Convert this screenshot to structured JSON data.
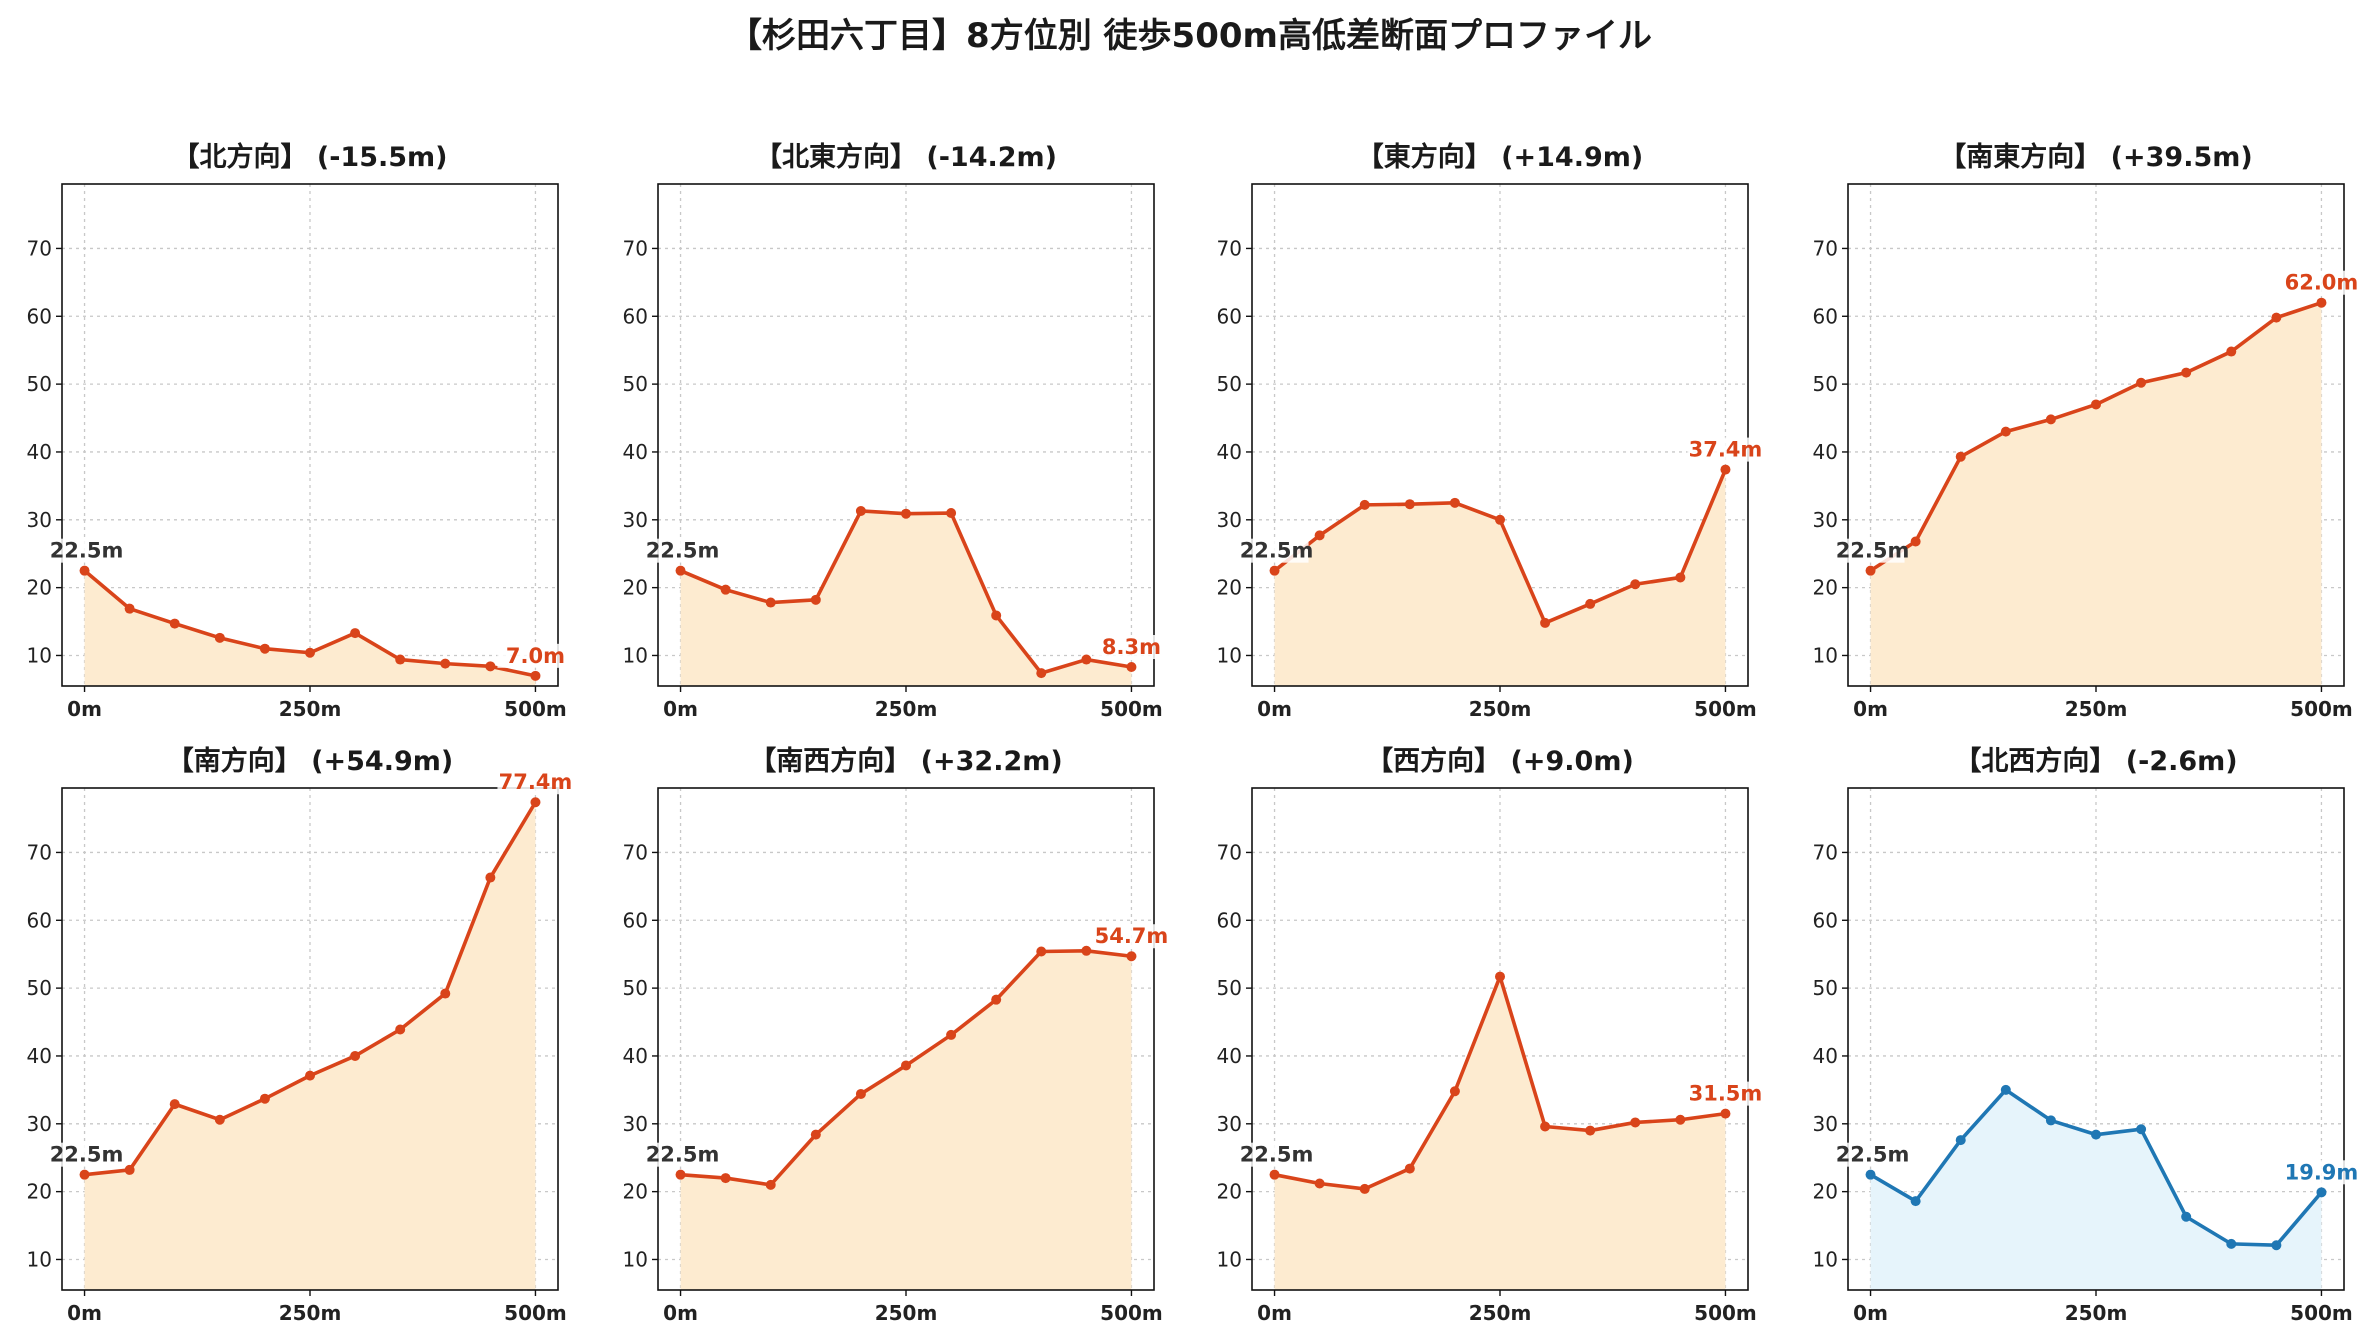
{
  "title": "【杉田六丁目】8方位別 徒歩500m高低差断面プロファイル",
  "colors": {
    "line_down_up": "#d9441a",
    "fill_warm": "#fdebd0",
    "line_blue": "#1f77b4",
    "fill_blue": "#e6f4fb",
    "start_label": "#333333"
  },
  "chart_data": [
    {
      "type": "line",
      "title": "【北方向】 (-15.5m)",
      "color": "red",
      "x": [
        0,
        50,
        100,
        150,
        200,
        250,
        300,
        350,
        400,
        450,
        500
      ],
      "values": [
        22.5,
        16.9,
        14.7,
        12.6,
        11.0,
        10.4,
        13.3,
        9.4,
        8.8,
        8.4,
        7.0
      ],
      "start_label": "22.5m",
      "end_label": "7.0m"
    },
    {
      "type": "line",
      "title": "【北東方向】 (-14.2m)",
      "color": "red",
      "x": [
        0,
        50,
        100,
        150,
        200,
        250,
        300,
        350,
        400,
        450,
        500
      ],
      "values": [
        22.5,
        19.7,
        17.8,
        18.2,
        31.3,
        30.9,
        31.0,
        15.9,
        7.4,
        9.4,
        8.3
      ],
      "start_label": "22.5m",
      "end_label": "8.3m"
    },
    {
      "type": "line",
      "title": "【東方向】 (+14.9m)",
      "color": "red",
      "x": [
        0,
        50,
        100,
        150,
        200,
        250,
        300,
        350,
        400,
        450,
        500
      ],
      "values": [
        22.5,
        27.7,
        32.2,
        32.3,
        32.5,
        30.0,
        14.8,
        17.6,
        20.5,
        21.5,
        37.4
      ],
      "start_label": "22.5m",
      "end_label": "37.4m"
    },
    {
      "type": "line",
      "title": "【南東方向】 (+39.5m)",
      "color": "red",
      "x": [
        0,
        50,
        100,
        150,
        200,
        250,
        300,
        350,
        400,
        450,
        500
      ],
      "values": [
        22.5,
        26.8,
        39.3,
        43.0,
        44.8,
        47.0,
        50.2,
        51.7,
        54.8,
        59.8,
        62.0
      ],
      "start_label": "22.5m",
      "end_label": "62.0m"
    },
    {
      "type": "line",
      "title": "【南方向】 (+54.9m)",
      "color": "red",
      "x": [
        0,
        50,
        100,
        150,
        200,
        250,
        300,
        350,
        400,
        450,
        500
      ],
      "values": [
        22.5,
        23.2,
        32.9,
        30.6,
        33.7,
        37.1,
        40.0,
        43.9,
        49.2,
        66.3,
        77.4
      ],
      "start_label": "22.5m",
      "end_label": "77.4m"
    },
    {
      "type": "line",
      "title": "【南西方向】 (+32.2m)",
      "color": "red",
      "x": [
        0,
        50,
        100,
        150,
        200,
        250,
        300,
        350,
        400,
        450,
        500
      ],
      "values": [
        22.5,
        22.0,
        21.0,
        28.4,
        34.4,
        38.6,
        43.1,
        48.3,
        55.4,
        55.5,
        54.7
      ],
      "start_label": "22.5m",
      "end_label": "54.7m"
    },
    {
      "type": "line",
      "title": "【西方向】 (+9.0m)",
      "color": "red",
      "x": [
        0,
        50,
        100,
        150,
        200,
        250,
        300,
        350,
        400,
        450,
        500
      ],
      "values": [
        22.5,
        21.2,
        20.4,
        23.4,
        34.8,
        51.7,
        29.6,
        29.0,
        30.2,
        30.6,
        31.5
      ],
      "start_label": "22.5m",
      "end_label": "31.5m"
    },
    {
      "type": "line",
      "title": "【北西方向】 (-2.6m)",
      "color": "blue",
      "x": [
        0,
        50,
        100,
        150,
        200,
        250,
        300,
        350,
        400,
        450,
        500
      ],
      "values": [
        22.5,
        18.6,
        27.6,
        35.0,
        30.5,
        28.4,
        29.2,
        16.3,
        12.3,
        12.1,
        19.9
      ],
      "start_label": "22.5m",
      "end_label": "19.9m"
    }
  ],
  "axes": {
    "xlim": [
      -25,
      525
    ],
    "ylim": [
      5.5,
      79.5
    ],
    "xticks": [
      0,
      250,
      500
    ],
    "xtick_labels": [
      "0m",
      "250m",
      "500m"
    ],
    "yticks": [
      10,
      20,
      30,
      40,
      50,
      60,
      70
    ],
    "grid": true
  }
}
